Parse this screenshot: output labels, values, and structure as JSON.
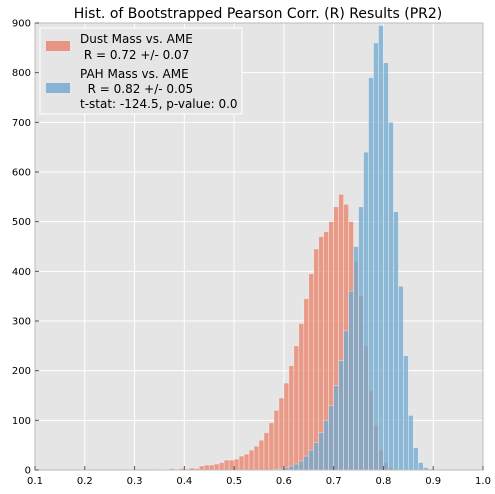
{
  "chart_data": {
    "type": "bar",
    "title": "Hist. of Bootstrapped Pearson Corr. (R) Results (PR2)",
    "xlabel": "",
    "ylabel": "",
    "xlim": [
      0.1,
      1.0
    ],
    "ylim": [
      0,
      900
    ],
    "xticks": [
      "0.1",
      "0.2",
      "0.3",
      "0.4",
      "0.5",
      "0.6",
      "0.7",
      "0.8",
      "0.9",
      "1.0"
    ],
    "yticks": [
      "0",
      "100",
      "200",
      "300",
      "400",
      "500",
      "600",
      "700",
      "800",
      "900"
    ],
    "grid": true,
    "legend_position": "top-left",
    "legend_stat_text": "t-stat: -124.5, p-value: 0.0",
    "bin_width": 0.01,
    "series": [
      {
        "name": "Dust Mass vs. AME",
        "sub_label": " R = 0.72 +/- 0.07",
        "color": "#E8806A",
        "bin_start": 0.35,
        "counts": [
          1,
          0,
          3,
          0,
          3,
          2,
          4,
          3,
          8,
          10,
          10,
          12,
          15,
          20,
          20,
          22,
          28,
          32,
          40,
          48,
          60,
          75,
          95,
          120,
          145,
          175,
          210,
          250,
          295,
          345,
          395,
          445,
          470,
          480,
          500,
          530,
          555,
          535,
          500,
          420,
          350,
          250,
          160,
          90,
          40,
          15,
          5,
          2
        ]
      },
      {
        "name": "PAH Mass vs. AME",
        "sub_label": "  R = 0.82 +/- 0.05",
        "color": "#6FA8CF",
        "bin_start": 0.58,
        "counts": [
          1,
          2,
          5,
          8,
          12,
          18,
          28,
          40,
          55,
          75,
          100,
          130,
          170,
          220,
          280,
          360,
          450,
          530,
          640,
          790,
          860,
          895,
          820,
          700,
          520,
          370,
          230,
          110,
          45,
          15,
          5,
          2
        ]
      }
    ]
  }
}
